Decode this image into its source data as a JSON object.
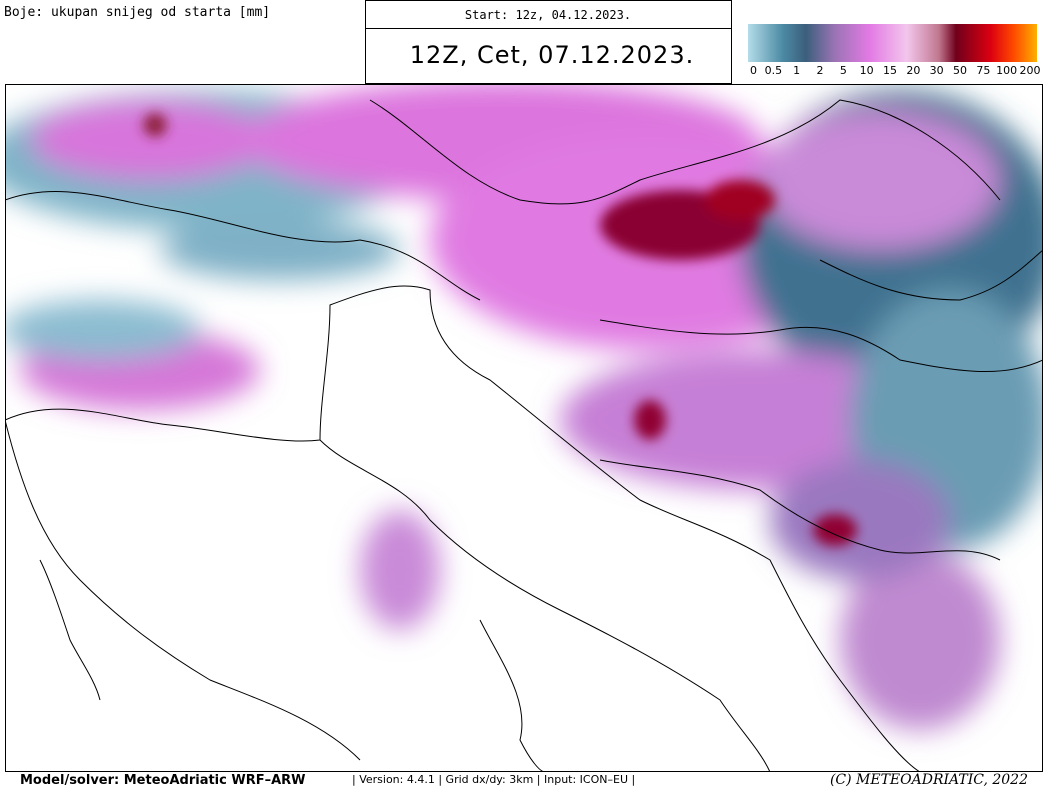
{
  "header": {
    "legend_title": "Boje: ukupan snijeg od starta [mm]",
    "start": "Start: 12z, 04.12.2023.",
    "valid": "12Z, Cet, 07.12.2023."
  },
  "colorbar": {
    "labels": [
      0,
      0.5,
      1,
      2,
      5,
      10,
      15,
      20,
      30,
      50,
      75,
      100,
      200
    ]
  },
  "footer": {
    "model": "Model/solver: MeteoAdriatic WRF–ARW",
    "details": "| Version: 4.4.1 | Grid dx/dy: 3km | Input: ICON–EU |",
    "copyright": "(C) METEOADRIATIC, 2022"
  }
}
